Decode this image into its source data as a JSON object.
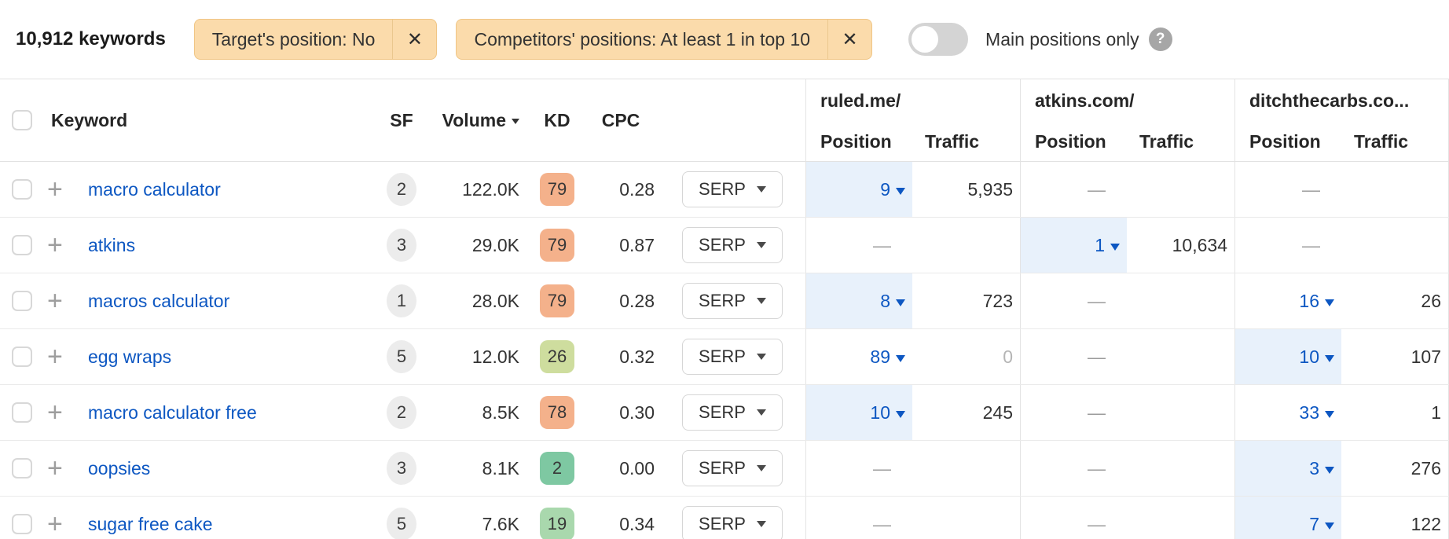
{
  "toolbar": {
    "keyword_count": "10,912 keywords",
    "filter_chips": [
      {
        "label": "Target's position: No"
      },
      {
        "label": "Competitors' positions: At least 1 in top 10"
      }
    ],
    "main_positions_toggle": {
      "label": "Main positions only",
      "state": "off"
    },
    "icons": {
      "close": "✕",
      "help": "?"
    }
  },
  "table": {
    "header": {
      "keyword": "Keyword",
      "sf": "SF",
      "volume": "Volume",
      "kd": "KD",
      "cpc": "CPC",
      "position": "Position",
      "traffic": "Traffic",
      "sorted_by": "Volume",
      "competitors": [
        "ruled.me/",
        "atkins.com/",
        "ditchthecarbs.co..."
      ]
    },
    "serp_button_label": "SERP",
    "empty_cell": "—",
    "colors": {
      "link_blue": "#0d57c2",
      "highlight_bg": "#e8f1fb",
      "kd_hard": "#f4b18b",
      "kd_medium": "#cedd9e",
      "kd_easy_light": "#a9d8ad",
      "kd_easy": "#7ec8a2",
      "chip_bg": "#fbdbab"
    },
    "rows": [
      {
        "keyword": "macro calculator",
        "sf": "2",
        "volume": "122.0K",
        "kd": "79",
        "kd_color": "#f4b18b",
        "cpc": "0.28",
        "competitors": [
          {
            "position": "9",
            "traffic": "5,935",
            "highlighted": true
          },
          {
            "position": null,
            "traffic": null
          },
          {
            "position": null,
            "traffic": null
          }
        ]
      },
      {
        "keyword": "atkins",
        "sf": "3",
        "volume": "29.0K",
        "kd": "79",
        "kd_color": "#f4b18b",
        "cpc": "0.87",
        "competitors": [
          {
            "position": null,
            "traffic": null
          },
          {
            "position": "1",
            "traffic": "10,634",
            "highlighted": true
          },
          {
            "position": null,
            "traffic": null
          }
        ]
      },
      {
        "keyword": "macros calculator",
        "sf": "1",
        "volume": "28.0K",
        "kd": "79",
        "kd_color": "#f4b18b",
        "cpc": "0.28",
        "competitors": [
          {
            "position": "8",
            "traffic": "723",
            "highlighted": true
          },
          {
            "position": null,
            "traffic": null
          },
          {
            "position": "16",
            "traffic": "26",
            "highlighted": false
          }
        ]
      },
      {
        "keyword": "egg wraps",
        "sf": "5",
        "volume": "12.0K",
        "kd": "26",
        "kd_color": "#cedd9e",
        "cpc": "0.32",
        "competitors": [
          {
            "position": "89",
            "traffic": "0",
            "highlighted": false,
            "traffic_muted": true
          },
          {
            "position": null,
            "traffic": null
          },
          {
            "position": "10",
            "traffic": "107",
            "highlighted": true
          }
        ]
      },
      {
        "keyword": "macro calculator free",
        "sf": "2",
        "volume": "8.5K",
        "kd": "78",
        "kd_color": "#f4b18b",
        "cpc": "0.30",
        "competitors": [
          {
            "position": "10",
            "traffic": "245",
            "highlighted": true
          },
          {
            "position": null,
            "traffic": null
          },
          {
            "position": "33",
            "traffic": "1",
            "highlighted": false
          }
        ]
      },
      {
        "keyword": "oopsies",
        "sf": "3",
        "volume": "8.1K",
        "kd": "2",
        "kd_color": "#7ec8a2",
        "cpc": "0.00",
        "competitors": [
          {
            "position": null,
            "traffic": null
          },
          {
            "position": null,
            "traffic": null
          },
          {
            "position": "3",
            "traffic": "276",
            "highlighted": true
          }
        ]
      },
      {
        "keyword": "sugar free cake",
        "sf": "5",
        "volume": "7.6K",
        "kd": "19",
        "kd_color": "#a9d8ad",
        "cpc": "0.34",
        "competitors": [
          {
            "position": null,
            "traffic": null
          },
          {
            "position": null,
            "traffic": null
          },
          {
            "position": "7",
            "traffic": "122",
            "highlighted": true
          }
        ]
      }
    ]
  }
}
